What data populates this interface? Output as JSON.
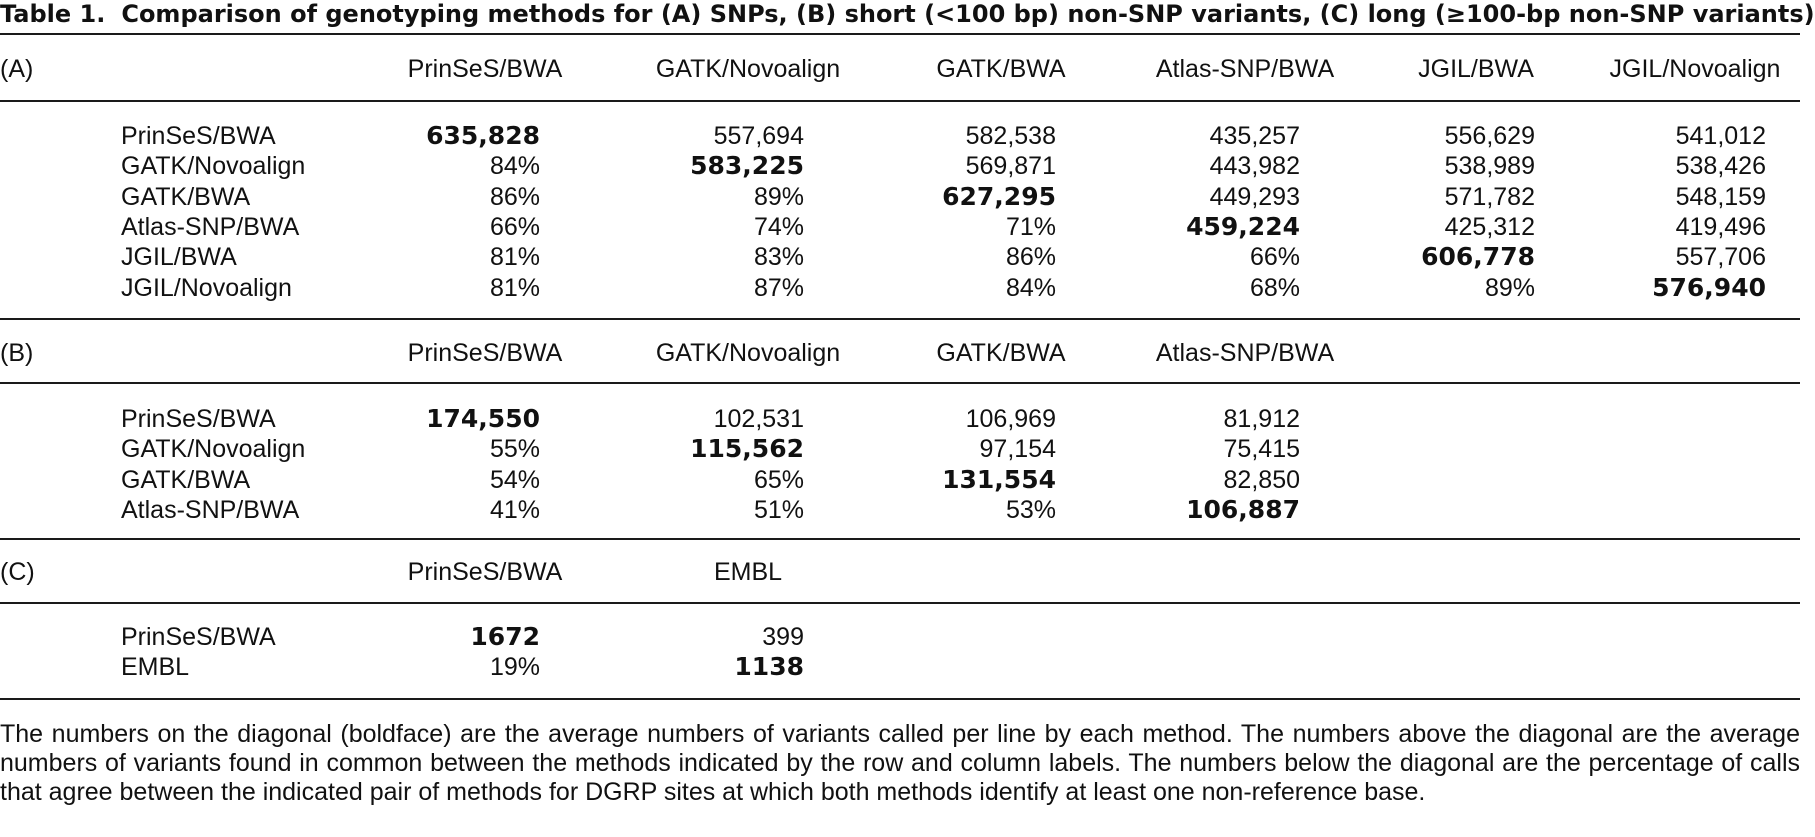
{
  "table": {
    "label": "Table 1.",
    "title": "Comparison of genotyping methods for (A) SNPs, (B) short (<100 bp) non-SNP variants, (C) long (≥100-bp non-SNP variants)",
    "sections": [
      {
        "id": "A",
        "label": "(A)",
        "columns": [
          "PrinSeS/BWA",
          "GATK/Novoalign",
          "GATK/BWA",
          "Atlas-SNP/BWA",
          "JGIL/BWA",
          "JGIL/Novoalign"
        ],
        "rows": [
          {
            "label": "PrinSeS/BWA",
            "cells": [
              "635,828",
              "557,694",
              "582,538",
              "435,257",
              "556,629",
              "541,012"
            ]
          },
          {
            "label": "GATK/Novoalign",
            "cells": [
              "84%",
              "583,225",
              "569,871",
              "443,982",
              "538,989",
              "538,426"
            ]
          },
          {
            "label": "GATK/BWA",
            "cells": [
              "86%",
              "89%",
              "627,295",
              "449,293",
              "571,782",
              "548,159"
            ]
          },
          {
            "label": "Atlas-SNP/BWA",
            "cells": [
              "66%",
              "74%",
              "71%",
              "459,224",
              "425,312",
              "419,496"
            ]
          },
          {
            "label": "JGIL/BWA",
            "cells": [
              "81%",
              "83%",
              "86%",
              "66%",
              "606,778",
              "557,706"
            ]
          },
          {
            "label": "JGIL/Novoalign",
            "cells": [
              "81%",
              "87%",
              "84%",
              "68%",
              "89%",
              "576,940"
            ]
          }
        ]
      },
      {
        "id": "B",
        "label": "(B)",
        "columns": [
          "PrinSeS/BWA",
          "GATK/Novoalign",
          "GATK/BWA",
          "Atlas-SNP/BWA"
        ],
        "rows": [
          {
            "label": "PrinSeS/BWA",
            "cells": [
              "174,550",
              "102,531",
              "106,969",
              "81,912"
            ]
          },
          {
            "label": "GATK/Novoalign",
            "cells": [
              "55%",
              "115,562",
              "97,154",
              "75,415"
            ]
          },
          {
            "label": "GATK/BWA",
            "cells": [
              "54%",
              "65%",
              "131,554",
              "82,850"
            ]
          },
          {
            "label": "Atlas-SNP/BWA",
            "cells": [
              "41%",
              "51%",
              "53%",
              "106,887"
            ]
          }
        ]
      },
      {
        "id": "C",
        "label": "(C)",
        "columns": [
          "PrinSeS/BWA",
          "EMBL"
        ],
        "rows": [
          {
            "label": "PrinSeS/BWA",
            "cells": [
              "1672",
              "399"
            ]
          },
          {
            "label": "EMBL",
            "cells": [
              "19%",
              "1138"
            ]
          }
        ]
      }
    ],
    "footnote": "The numbers on the diagonal (boldface) are the average numbers of variants called per line by each method. The numbers above the diagonal are the average numbers of variants found in common between the methods indicated by the row and column labels. The numbers below the diagonal are the percentage of calls that agree between the indicated pair of methods for DGRP sites at which both methods identify at least one non-reference base."
  }
}
